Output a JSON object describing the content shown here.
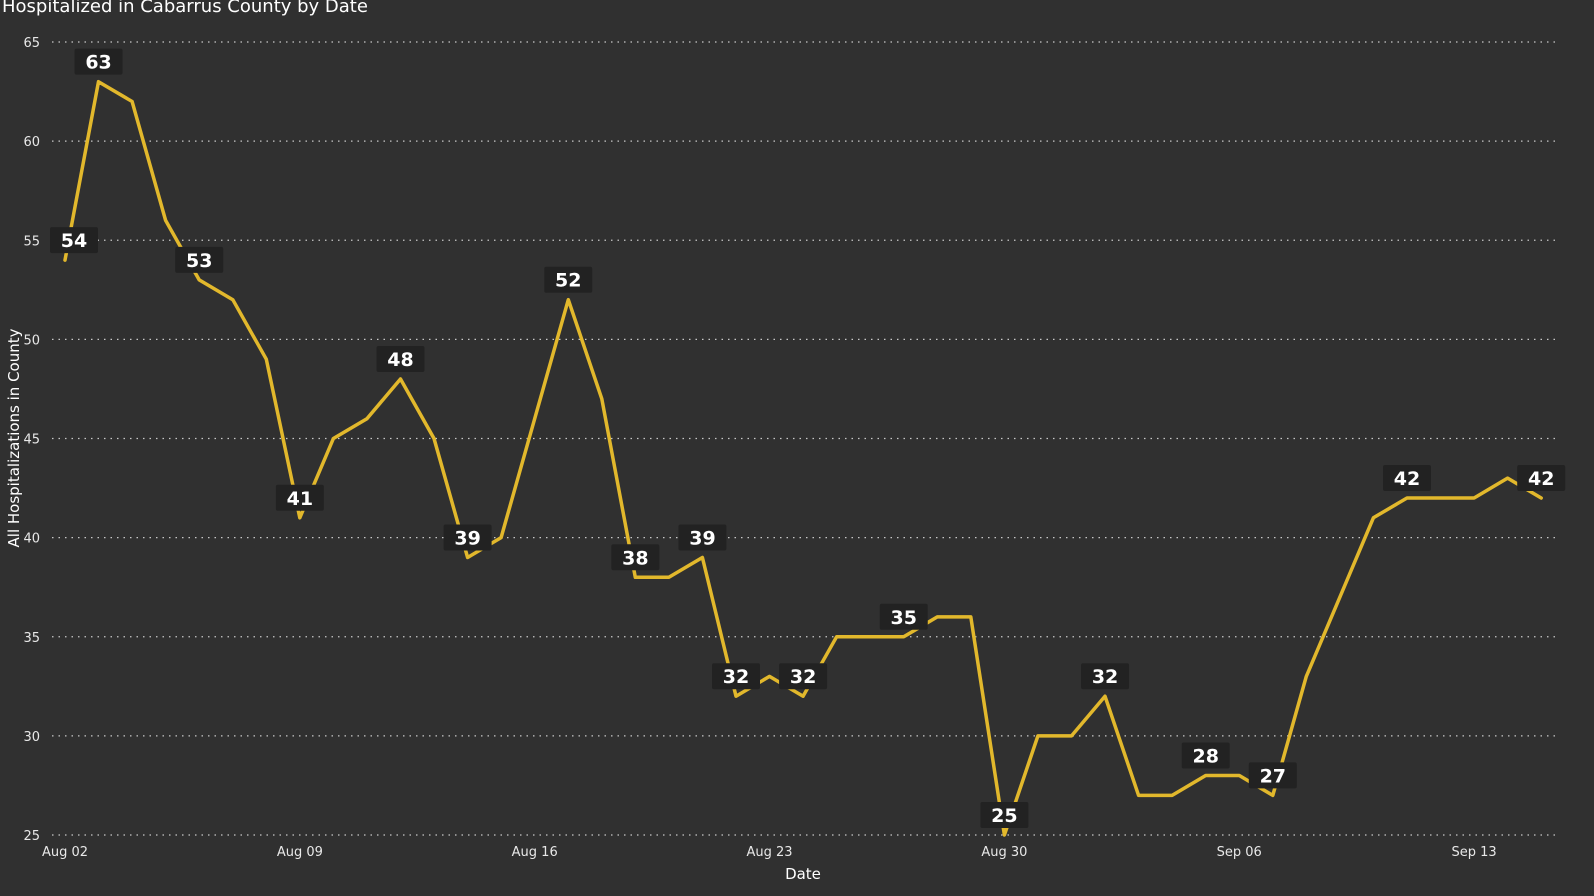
{
  "chart_data": {
    "type": "line",
    "title": "Hospitalized in Cabarrus County by Date",
    "xlabel": "Date",
    "ylabel": "All Hospitalizations in County",
    "ylim": [
      25,
      65
    ],
    "yticks": [
      25,
      30,
      35,
      40,
      45,
      50,
      55,
      60,
      65
    ],
    "x_start": "2020-08-02",
    "xticks": [
      "Aug 02",
      "Aug 09",
      "Aug 16",
      "Aug 23",
      "Aug 30",
      "Sep 06",
      "Sep 13"
    ],
    "xtick_day_offsets": [
      0,
      7,
      14,
      21,
      28,
      35,
      42
    ],
    "grid": "horizontal dotted",
    "line_color": "#e2b82c",
    "label_bg_color": "#222222",
    "background_color": "#303030",
    "series": [
      {
        "values": [
          54,
          63,
          62,
          56,
          53,
          52,
          49,
          41,
          45,
          46,
          48,
          45,
          39,
          40,
          46,
          52,
          47,
          38,
          38,
          39,
          32,
          33,
          32,
          35,
          35,
          35,
          36,
          36,
          25,
          30,
          30,
          32,
          27,
          27,
          28,
          28,
          27,
          33,
          37,
          41,
          42,
          42,
          42,
          43,
          42
        ]
      }
    ],
    "data_labels": [
      {
        "index": 0,
        "text": "54"
      },
      {
        "index": 1,
        "text": "63"
      },
      {
        "index": 4,
        "text": "53"
      },
      {
        "index": 7,
        "text": "41"
      },
      {
        "index": 10,
        "text": "48"
      },
      {
        "index": 12,
        "text": "39"
      },
      {
        "index": 15,
        "text": "52"
      },
      {
        "index": 17,
        "text": "38"
      },
      {
        "index": 19,
        "text": "39"
      },
      {
        "index": 20,
        "text": "32"
      },
      {
        "index": 22,
        "text": "32"
      },
      {
        "index": 25,
        "text": "35"
      },
      {
        "index": 28,
        "text": "25"
      },
      {
        "index": 31,
        "text": "32"
      },
      {
        "index": 34,
        "text": "28"
      },
      {
        "index": 36,
        "text": "27"
      },
      {
        "index": 40,
        "text": "42"
      },
      {
        "index": 44,
        "text": "42"
      }
    ]
  }
}
